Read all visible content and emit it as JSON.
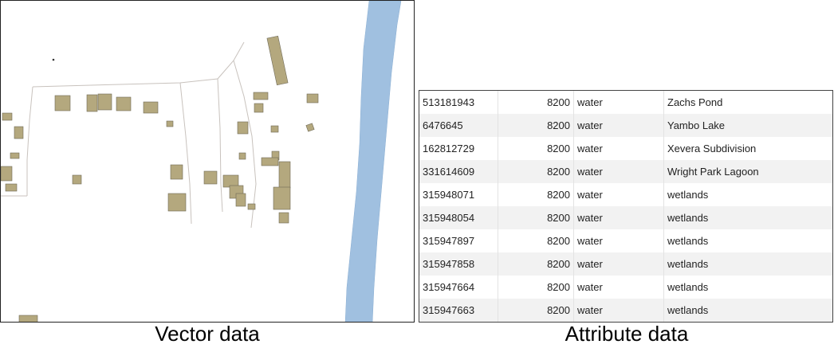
{
  "panels": {
    "vector_caption": "Vector data",
    "attribute_caption": "Attribute data"
  },
  "map": {
    "building_color": "#b4a87e",
    "water_color": "#a0c0e0",
    "road_color": "#c8c2bd"
  },
  "attribute_table": {
    "rows": [
      {
        "id": "513181943",
        "code": "8200",
        "fclass": "water",
        "name": "Zachs Pond"
      },
      {
        "id": "6476645",
        "code": "8200",
        "fclass": "water",
        "name": "Yambo Lake"
      },
      {
        "id": "162812729",
        "code": "8200",
        "fclass": "water",
        "name": "Xevera Subdivision"
      },
      {
        "id": "331614609",
        "code": "8200",
        "fclass": "water",
        "name": "Wright Park Lagoon"
      },
      {
        "id": "315948071",
        "code": "8200",
        "fclass": "water",
        "name": "wetlands"
      },
      {
        "id": "315948054",
        "code": "8200",
        "fclass": "water",
        "name": "wetlands"
      },
      {
        "id": "315947897",
        "code": "8200",
        "fclass": "water",
        "name": "wetlands"
      },
      {
        "id": "315947858",
        "code": "8200",
        "fclass": "water",
        "name": "wetlands"
      },
      {
        "id": "315947664",
        "code": "8200",
        "fclass": "water",
        "name": "wetlands"
      },
      {
        "id": "315947663",
        "code": "8200",
        "fclass": "water",
        "name": "wetlands"
      }
    ]
  }
}
